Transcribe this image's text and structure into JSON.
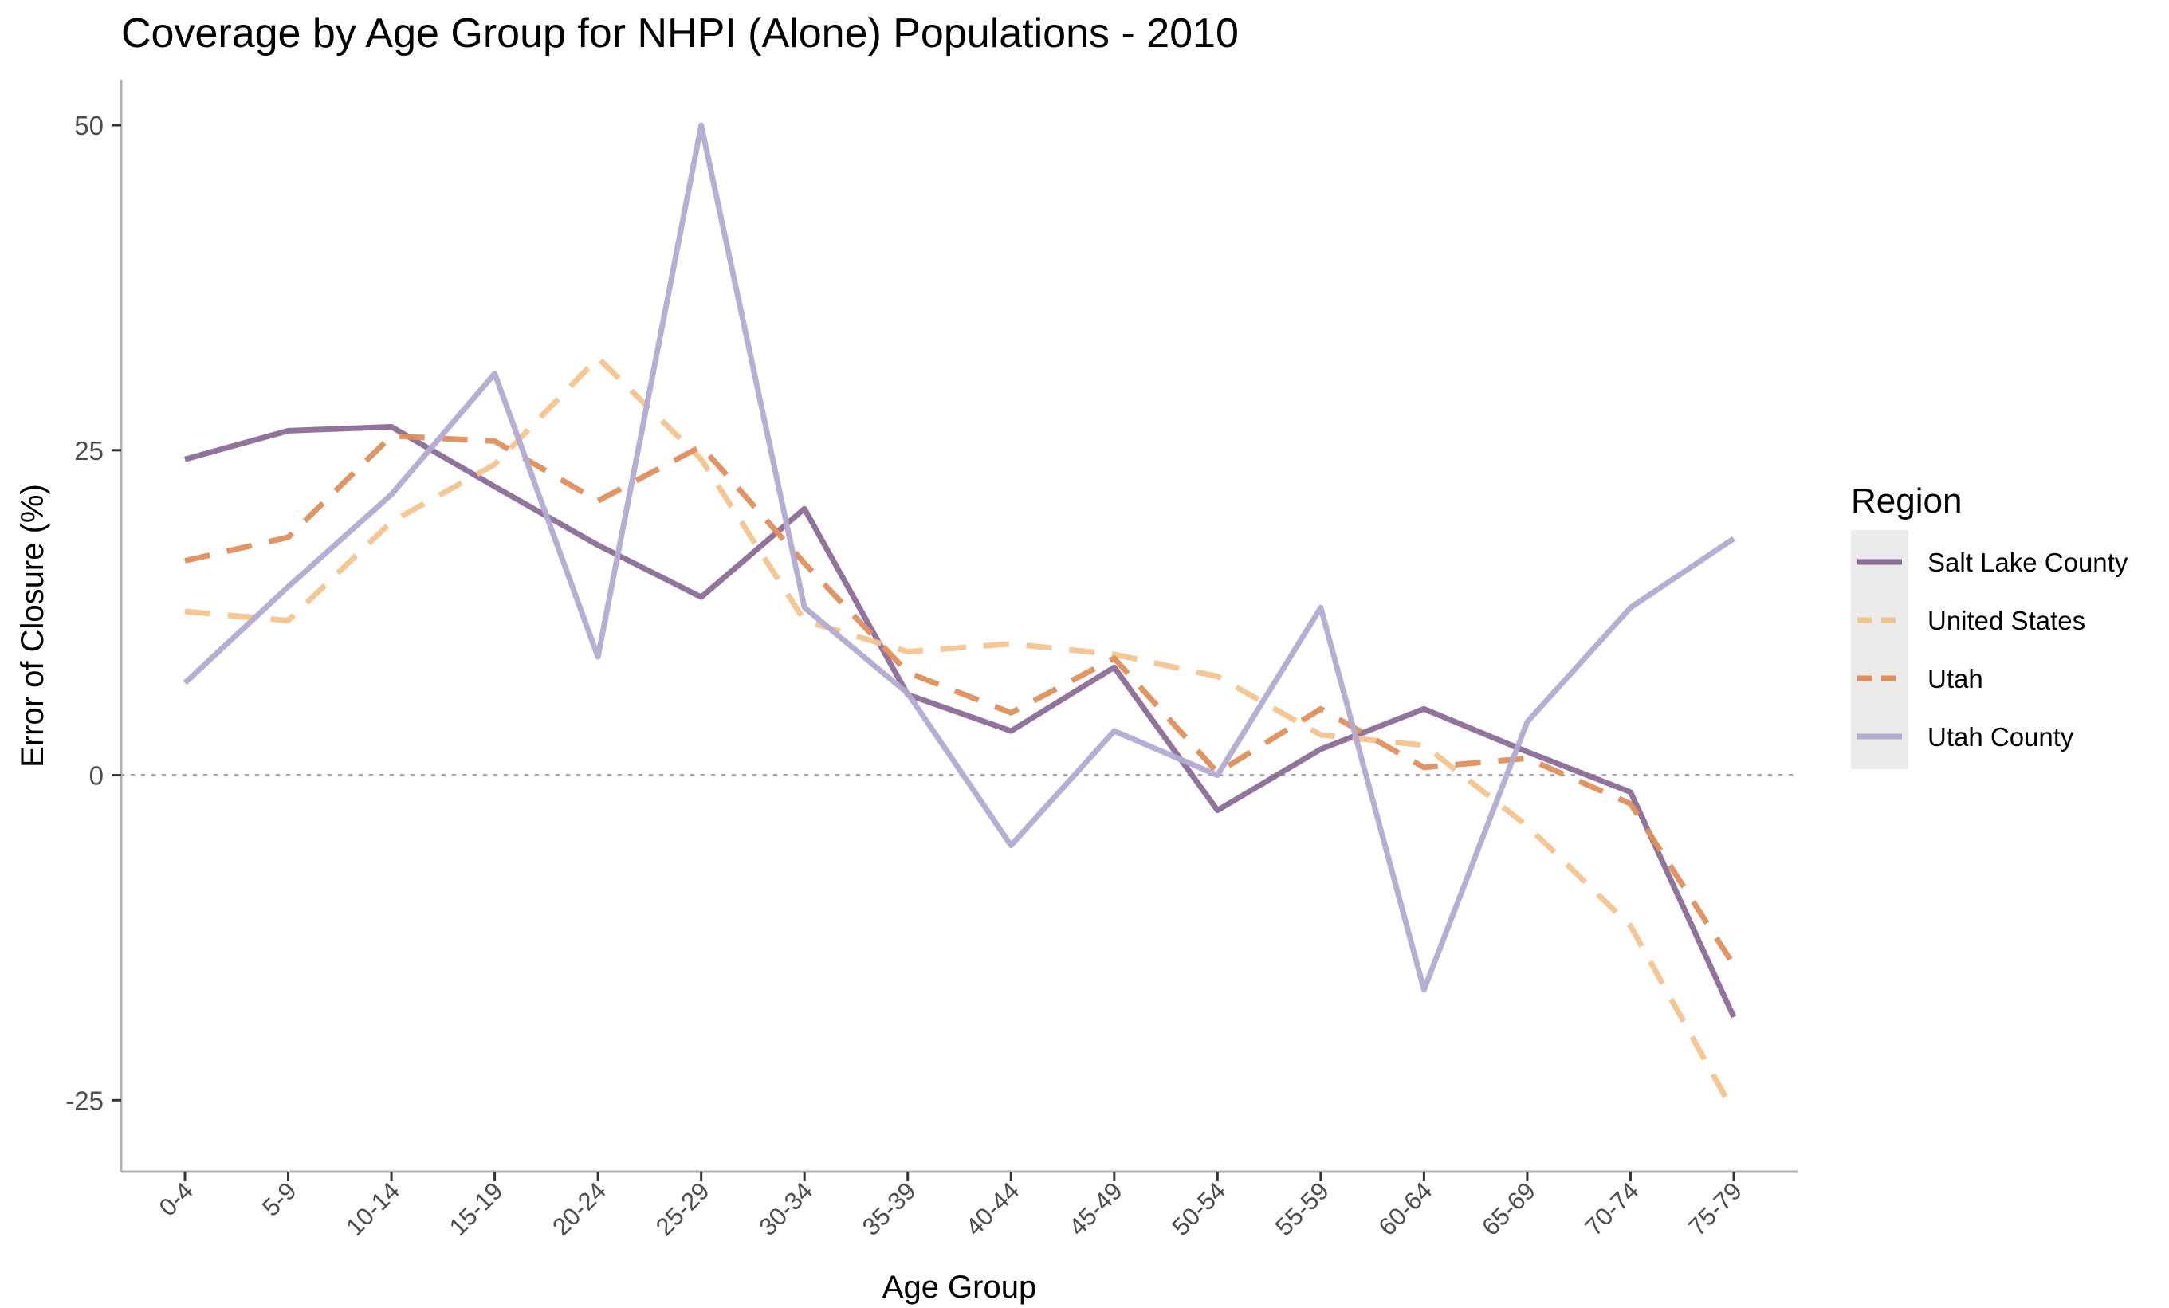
{
  "chart_data": {
    "type": "line",
    "title": "Coverage by Age Group for NHPI (Alone) Populations - 2010",
    "xlabel": "Age Group",
    "ylabel": "Error of Closure (%)",
    "categories": [
      "0-4",
      "5-9",
      "10-14",
      "15-19",
      "20-24",
      "25-29",
      "30-34",
      "35-39",
      "40-44",
      "45-49",
      "50-54",
      "55-59",
      "60-64",
      "65-69",
      "70-74",
      "75-79"
    ],
    "y_ticks": [
      -25,
      0,
      25,
      50
    ],
    "ylim": [
      -30.5,
      53.5
    ],
    "reference_line": 0,
    "grid": false,
    "legend": {
      "title": "Region",
      "placement": "right"
    },
    "series": [
      {
        "name": "Salt Lake County",
        "color": "#8c6b97",
        "dash": "solid",
        "values": [
          24.3,
          26.5,
          26.8,
          22.2,
          17.7,
          13.7,
          20.5,
          6.2,
          3.4,
          8.3,
          -2.7,
          2.0,
          5.1,
          1.8,
          -1.3,
          -18.6
        ]
      },
      {
        "name": "United States",
        "color": "#f4c48f",
        "dash": "dashed",
        "values": [
          12.6,
          11.9,
          19.5,
          23.9,
          32.1,
          24.3,
          11.9,
          9.5,
          10.1,
          9.3,
          7.6,
          3.1,
          2.3,
          -3.9,
          -11.6,
          -25.9
        ]
      },
      {
        "name": "Utah",
        "color": "#e08f5c",
        "dash": "dashed",
        "values": [
          16.5,
          18.3,
          26.1,
          25.7,
          21.1,
          25.3,
          16.3,
          7.9,
          4.8,
          9.0,
          0.2,
          5.1,
          0.6,
          1.3,
          -2.2,
          -14.6
        ]
      },
      {
        "name": "Utah County",
        "color": "#b3abd1",
        "dash": "solid",
        "values": [
          7.1,
          14.5,
          21.6,
          30.9,
          9.1,
          50.0,
          12.9,
          6.3,
          -5.4,
          3.4,
          0.0,
          12.9,
          -16.5,
          4.1,
          12.9,
          18.2
        ]
      }
    ]
  }
}
